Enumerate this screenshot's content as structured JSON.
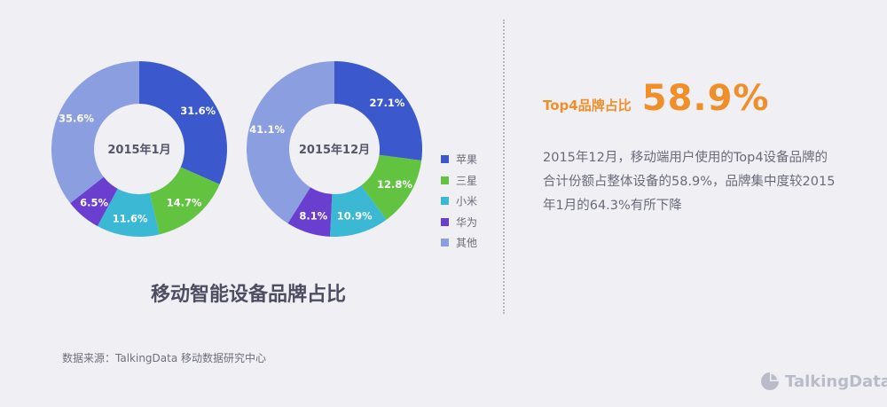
{
  "chart_data": [
    {
      "type": "pie",
      "center_label": "2015年1月",
      "categories": [
        "苹果",
        "三星",
        "小米",
        "华为",
        "其他"
      ],
      "values": [
        31.6,
        14.7,
        11.6,
        6.5,
        35.6
      ],
      "value_labels": [
        "31.6%",
        "14.7%",
        "11.6%",
        "6.5%",
        "35.6%"
      ]
    },
    {
      "type": "pie",
      "center_label": "2015年12月",
      "categories": [
        "苹果",
        "三星",
        "小米",
        "华为",
        "其他"
      ],
      "values": [
        27.1,
        12.8,
        10.9,
        8.1,
        41.1
      ],
      "value_labels": [
        "27.1%",
        "12.8%",
        "10.9%",
        "8.1%",
        "41.1%"
      ]
    }
  ],
  "legend": [
    {
      "label": "苹果",
      "color": "#3b59cc"
    },
    {
      "label": "三星",
      "color": "#62c341"
    },
    {
      "label": "小米",
      "color": "#3ab8d4"
    },
    {
      "label": "华为",
      "color": "#6a3fd0"
    },
    {
      "label": "其他",
      "color": "#8b9ee0"
    }
  ],
  "caption": "移动智能设备品牌占比",
  "source": "数据来源：TalkingData 移动数据研究中心",
  "headline": {
    "label": "Top4品牌占比",
    "value": "58.9%"
  },
  "description": "2015年12月，移动端用户使用的Top4设备品牌的合计份额占整体设备的58.9%，品牌集中度较2015年1月的64.3%有所下降",
  "brand": {
    "name": "TalkingData",
    "icon": "pie-logo-icon"
  }
}
